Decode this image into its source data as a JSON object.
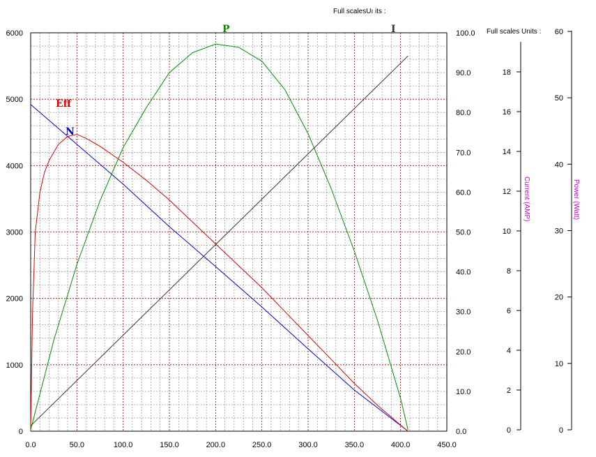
{
  "chart_data": {
    "type": "line",
    "x_axis": {
      "min": 0,
      "max": 450,
      "ticks": [
        "0.0",
        "50.0",
        "100.0",
        "150.0",
        "200.0",
        "250.0",
        "300.0",
        "350.0",
        "400.0",
        "450.0"
      ]
    },
    "left_axis": {
      "min": 0,
      "max": 6000,
      "ticks": [
        "0",
        "1000",
        "2000",
        "3000",
        "4000",
        "5000",
        "6000"
      ]
    },
    "right_axis": {
      "min": 0,
      "max": 100,
      "ticks": [
        "0.0",
        "10.0",
        "20.0",
        "30.0",
        "40.0",
        "50.0",
        "60.0",
        "70.0",
        "80.0",
        "90.0",
        "100.0"
      ]
    },
    "current_axis": {
      "label": "Current (AMP)",
      "min": 0,
      "max": 20,
      "ticks": [
        "0",
        "2",
        "4",
        "6",
        "8",
        "10",
        "12",
        "14",
        "16",
        "18"
      ]
    },
    "power_axis": {
      "label": "Power (Watt)",
      "min": 0,
      "max": 60,
      "ticks": [
        "0",
        "10",
        "20",
        "30",
        "40",
        "50",
        "60"
      ]
    },
    "full_scale_label_1": "Full scalesUı its :",
    "full_scale_label_2": "Full scales Units :",
    "grid": true,
    "series": [
      {
        "name": "N",
        "color": "#0000cc",
        "axis": "left",
        "x": [
          0,
          50,
          100,
          150,
          200,
          250,
          300,
          350,
          408
        ],
        "y": [
          4920,
          4320,
          3720,
          3080,
          2480,
          1870,
          1240,
          620,
          0
        ]
      },
      {
        "name": "Eff",
        "color": "#dd0000",
        "axis": "right",
        "x": [
          0,
          2,
          5,
          10,
          15,
          20,
          30,
          40,
          50,
          60,
          75,
          100,
          125,
          150,
          175,
          200,
          225,
          250,
          275,
          300,
          325,
          350,
          375,
          400,
          408
        ],
        "y": [
          0,
          30,
          50,
          60,
          65,
          68,
          72,
          74,
          74.5,
          73.5,
          71.5,
          67.5,
          63,
          58,
          52.5,
          47,
          41.5,
          36,
          30,
          24,
          18,
          12,
          6.5,
          1.5,
          0
        ]
      },
      {
        "name": "P",
        "color": "#009000",
        "axis": "power",
        "x": [
          0,
          25,
          50,
          75,
          100,
          125,
          150,
          175,
          200,
          225,
          250,
          275,
          300,
          325,
          350,
          375,
          400,
          408
        ],
        "y": [
          0,
          13.5,
          24.9,
          34.5,
          42.5,
          48.5,
          53.8,
          56.8,
          58.1,
          57.6,
          55.5,
          51.2,
          44.6,
          36.3,
          26.9,
          16.5,
          4.7,
          0
        ]
      },
      {
        "name": "I",
        "color": "#333333",
        "axis": "current",
        "x": [
          0,
          408
        ],
        "y": [
          0.2,
          18.8
        ]
      }
    ]
  }
}
